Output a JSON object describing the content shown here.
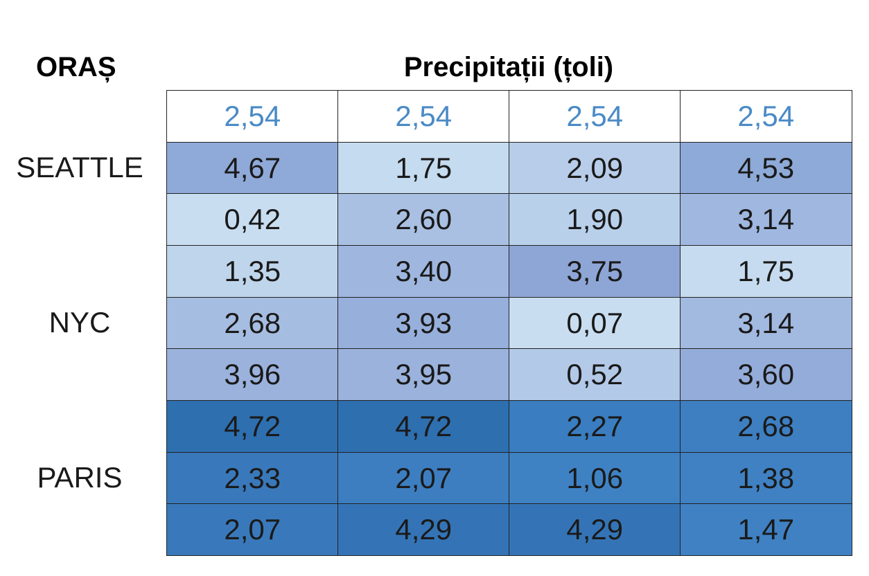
{
  "header": {
    "city_label": "ORAȘ",
    "title": "Precipitații (țoli)"
  },
  "table": {
    "groups": [
      {
        "city": "SEATTLE",
        "rows": [
          [
            "2,54",
            "2,54",
            "2,54",
            "2,54"
          ],
          [
            "4,67",
            "1,75",
            "2,09",
            "4,53"
          ],
          [
            "0,42",
            "2,60",
            "1,90",
            "3,14"
          ]
        ]
      },
      {
        "city": "NYC",
        "rows": [
          [
            "1,35",
            "3,40",
            "3,75",
            "1,75"
          ],
          [
            "2,68",
            "3,93",
            "0,07",
            "3,14"
          ],
          [
            "3,96",
            "3,95",
            "0,52",
            "3,60"
          ]
        ]
      },
      {
        "city": "PARIS",
        "rows": [
          [
            "4,72",
            "4,72",
            "2,27",
            "2,68"
          ],
          [
            "2,33",
            "2,07",
            "1,06",
            "1,38"
          ],
          [
            "2,07",
            "4,29",
            "4,29",
            "1,47"
          ]
        ]
      }
    ]
  }
}
